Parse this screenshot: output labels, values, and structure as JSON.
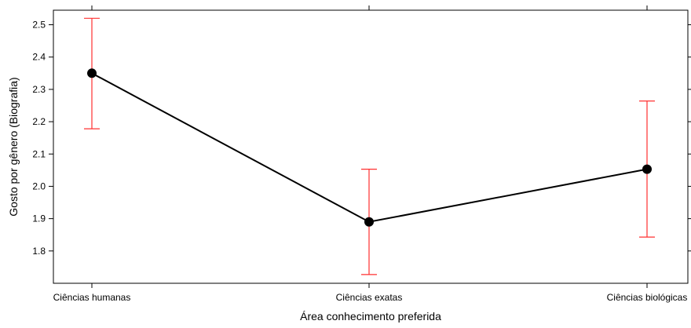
{
  "chart_data": {
    "type": "line",
    "title": "",
    "xlabel": "Área conhecimento preferida",
    "ylabel": "Gosto por gênero (Biografia)",
    "categories": [
      "Ciências humanas",
      "Ciências exatas",
      "Ciências biológicas"
    ],
    "values": [
      2.35,
      1.89,
      2.053
    ],
    "error_lower": [
      2.178,
      1.727,
      1.843
    ],
    "error_upper": [
      2.52,
      2.053,
      2.264
    ],
    "ylim": [
      1.7,
      2.545
    ],
    "yticks": [
      1.8,
      1.9,
      2.0,
      2.1,
      2.2,
      2.3,
      2.4,
      2.5
    ],
    "grid": false,
    "colors": {
      "line": "#000000",
      "point": "#000000",
      "error_bar": "#ff3030",
      "frame": "#000000"
    }
  }
}
